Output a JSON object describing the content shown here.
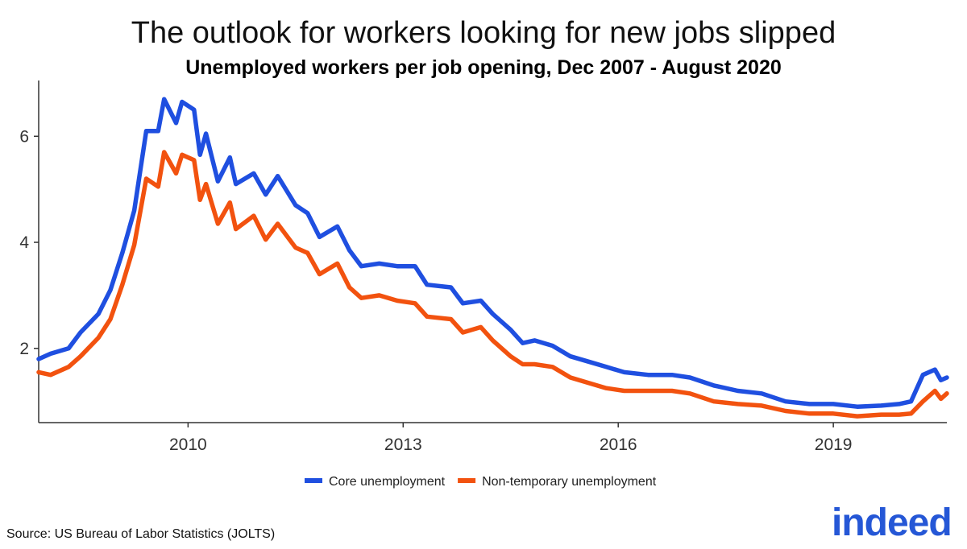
{
  "title": "The outlook for workers looking for new jobs slipped",
  "subtitle": "Unemployed workers per job opening, Dec 2007 - August 2020",
  "source": "Source: US Bureau of Labor Statistics (JOLTS)",
  "logo": "indeed",
  "colors": {
    "core": "#1f4fe0",
    "nontemp": "#f2520f",
    "axis": "#333333"
  },
  "chart_data": {
    "type": "line",
    "title": "The outlook for workers looking for new jobs slipped",
    "subtitle": "Unemployed workers per job opening, Dec 2007 - August 2020",
    "xlabel": "",
    "ylabel": "",
    "xlim": [
      "2007-12",
      "2020-08"
    ],
    "ylim": [
      0.6,
      6.9
    ],
    "x_ticks": [
      "2010",
      "2013",
      "2016",
      "2019"
    ],
    "y_ticks": [
      "2",
      "4",
      "6"
    ],
    "grid": false,
    "legend_position": "bottom",
    "series": [
      {
        "name": "Core unemployment",
        "color": "#1f4fe0",
        "points": [
          [
            "2007-12",
            1.8
          ],
          [
            "2008-02",
            1.9
          ],
          [
            "2008-05",
            2.0
          ],
          [
            "2008-07",
            2.3
          ],
          [
            "2008-10",
            2.65
          ],
          [
            "2008-12",
            3.1
          ],
          [
            "2009-02",
            3.8
          ],
          [
            "2009-04",
            4.6
          ],
          [
            "2009-06",
            6.1
          ],
          [
            "2009-08",
            6.1
          ],
          [
            "2009-09",
            6.7
          ],
          [
            "2009-11",
            6.25
          ],
          [
            "2009-12",
            6.65
          ],
          [
            "2010-02",
            6.5
          ],
          [
            "2010-03",
            5.65
          ],
          [
            "2010-04",
            6.05
          ],
          [
            "2010-06",
            5.15
          ],
          [
            "2010-08",
            5.6
          ],
          [
            "2010-09",
            5.1
          ],
          [
            "2010-12",
            5.3
          ],
          [
            "2011-02",
            4.9
          ],
          [
            "2011-04",
            5.25
          ],
          [
            "2011-07",
            4.7
          ],
          [
            "2011-09",
            4.55
          ],
          [
            "2011-11",
            4.1
          ],
          [
            "2012-02",
            4.3
          ],
          [
            "2012-04",
            3.85
          ],
          [
            "2012-06",
            3.55
          ],
          [
            "2012-09",
            3.6
          ],
          [
            "2012-12",
            3.55
          ],
          [
            "2013-03",
            3.55
          ],
          [
            "2013-05",
            3.2
          ],
          [
            "2013-09",
            3.15
          ],
          [
            "2013-11",
            2.85
          ],
          [
            "2014-02",
            2.9
          ],
          [
            "2014-04",
            2.65
          ],
          [
            "2014-07",
            2.35
          ],
          [
            "2014-09",
            2.1
          ],
          [
            "2014-11",
            2.15
          ],
          [
            "2015-02",
            2.05
          ],
          [
            "2015-05",
            1.85
          ],
          [
            "2015-08",
            1.75
          ],
          [
            "2015-11",
            1.65
          ],
          [
            "2016-02",
            1.55
          ],
          [
            "2016-06",
            1.5
          ],
          [
            "2016-10",
            1.5
          ],
          [
            "2017-01",
            1.45
          ],
          [
            "2017-05",
            1.3
          ],
          [
            "2017-09",
            1.2
          ],
          [
            "2018-01",
            1.15
          ],
          [
            "2018-05",
            1.0
          ],
          [
            "2018-09",
            0.95
          ],
          [
            "2019-01",
            0.95
          ],
          [
            "2019-05",
            0.9
          ],
          [
            "2019-09",
            0.92
          ],
          [
            "2019-12",
            0.95
          ],
          [
            "2020-02",
            1.0
          ],
          [
            "2020-04",
            1.5
          ],
          [
            "2020-06",
            1.6
          ],
          [
            "2020-07",
            1.4
          ],
          [
            "2020-08",
            1.45
          ]
        ]
      },
      {
        "name": "Non-temporary unemployment",
        "color": "#f2520f",
        "points": [
          [
            "2007-12",
            1.55
          ],
          [
            "2008-02",
            1.5
          ],
          [
            "2008-05",
            1.65
          ],
          [
            "2008-07",
            1.85
          ],
          [
            "2008-10",
            2.2
          ],
          [
            "2008-12",
            2.55
          ],
          [
            "2009-02",
            3.2
          ],
          [
            "2009-04",
            3.95
          ],
          [
            "2009-06",
            5.2
          ],
          [
            "2009-08",
            5.05
          ],
          [
            "2009-09",
            5.7
          ],
          [
            "2009-11",
            5.3
          ],
          [
            "2009-12",
            5.65
          ],
          [
            "2010-02",
            5.55
          ],
          [
            "2010-03",
            4.8
          ],
          [
            "2010-04",
            5.1
          ],
          [
            "2010-06",
            4.35
          ],
          [
            "2010-08",
            4.75
          ],
          [
            "2010-09",
            4.25
          ],
          [
            "2010-12",
            4.5
          ],
          [
            "2011-02",
            4.05
          ],
          [
            "2011-04",
            4.35
          ],
          [
            "2011-07",
            3.9
          ],
          [
            "2011-09",
            3.8
          ],
          [
            "2011-11",
            3.4
          ],
          [
            "2012-02",
            3.6
          ],
          [
            "2012-04",
            3.15
          ],
          [
            "2012-06",
            2.95
          ],
          [
            "2012-09",
            3.0
          ],
          [
            "2012-12",
            2.9
          ],
          [
            "2013-03",
            2.85
          ],
          [
            "2013-05",
            2.6
          ],
          [
            "2013-09",
            2.55
          ],
          [
            "2013-11",
            2.3
          ],
          [
            "2014-02",
            2.4
          ],
          [
            "2014-04",
            2.15
          ],
          [
            "2014-07",
            1.85
          ],
          [
            "2014-09",
            1.7
          ],
          [
            "2014-11",
            1.7
          ],
          [
            "2015-02",
            1.65
          ],
          [
            "2015-05",
            1.45
          ],
          [
            "2015-08",
            1.35
          ],
          [
            "2015-11",
            1.25
          ],
          [
            "2016-02",
            1.2
          ],
          [
            "2016-06",
            1.2
          ],
          [
            "2016-10",
            1.2
          ],
          [
            "2017-01",
            1.15
          ],
          [
            "2017-05",
            1.0
          ],
          [
            "2017-09",
            0.95
          ],
          [
            "2018-01",
            0.92
          ],
          [
            "2018-05",
            0.82
          ],
          [
            "2018-09",
            0.77
          ],
          [
            "2019-01",
            0.77
          ],
          [
            "2019-05",
            0.72
          ],
          [
            "2019-09",
            0.75
          ],
          [
            "2019-12",
            0.75
          ],
          [
            "2020-02",
            0.77
          ],
          [
            "2020-04",
            1.0
          ],
          [
            "2020-06",
            1.2
          ],
          [
            "2020-07",
            1.05
          ],
          [
            "2020-08",
            1.15
          ]
        ]
      }
    ]
  }
}
